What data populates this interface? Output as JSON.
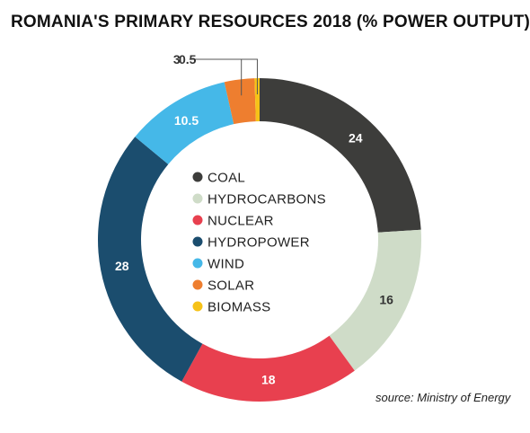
{
  "chart_data": {
    "type": "pie",
    "title": "ROMANIA'S PRIMARY RESOURCES 2018 (% POWER OUTPUT)",
    "source": "source: Ministry of Energy",
    "categories": [
      "COAL",
      "HYDROCARBONS",
      "NUCLEAR",
      "HYDROPOWER",
      "WIND",
      "SOLAR",
      "BIOMASS"
    ],
    "values": [
      24,
      16,
      18,
      28,
      10.5,
      3,
      0.5
    ],
    "value_labels": [
      "24",
      "16",
      "18",
      "28",
      "10.5",
      "3",
      "0.5"
    ],
    "colors": [
      "#3d3d3b",
      "#cfdcc8",
      "#e8404f",
      "#1b4d6e",
      "#45b8e8",
      "#ee7e2f",
      "#f6c218"
    ],
    "label_dark": [
      false,
      true,
      false,
      false,
      false,
      true,
      true
    ],
    "legend_placement": "center",
    "donut": true
  }
}
